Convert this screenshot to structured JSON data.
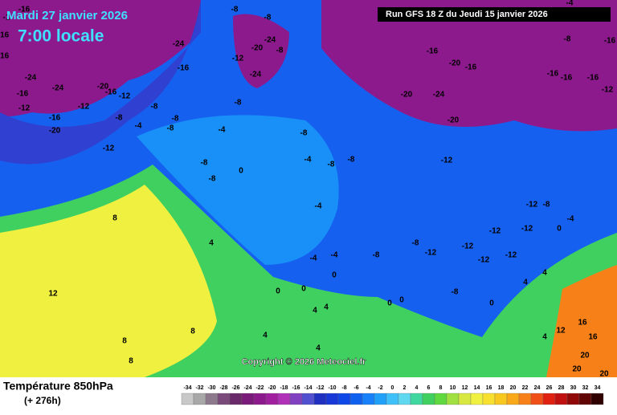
{
  "header": {
    "date": "Mardi 27 janvier 2026",
    "time": "7:00 locale",
    "run": "Run GFS 18 Z du Jeudi 15 janvier 2026",
    "copyright": "Copyright © 2026 Meteociel.fr"
  },
  "legend": {
    "title": "Température 850hPa",
    "lead": "(+ 276h)",
    "ticks": [
      -34,
      -32,
      -30,
      -28,
      -26,
      -24,
      -22,
      -20,
      -18,
      -16,
      -14,
      -12,
      -10,
      -8,
      -6,
      -4,
      -2,
      0,
      2,
      4,
      6,
      8,
      10,
      12,
      14,
      16,
      18,
      20,
      22,
      24,
      26,
      28,
      30,
      32,
      34
    ],
    "colors": [
      "#c8c8c8",
      "#a8a8a8",
      "#8c7a8c",
      "#7a4a7a",
      "#6a2a6a",
      "#7a1a7a",
      "#8c1a8c",
      "#a020a0",
      "#b030b8",
      "#8040c0",
      "#5050d0",
      "#2030c0",
      "#1838d8",
      "#1048e8",
      "#1060f0",
      "#1880f8",
      "#20a0f8",
      "#40c0f8",
      "#60d8f0",
      "#40d8a0",
      "#40d060",
      "#60d840",
      "#a0e040",
      "#d8e840",
      "#f0f040",
      "#f8e030",
      "#f8c820",
      "#f8a818",
      "#f88018",
      "#f05018",
      "#e02010",
      "#c01010",
      "#900808",
      "#600404",
      "#300000"
    ]
  },
  "map": {
    "labels": [
      -16,
      -24,
      -16,
      -24,
      -16,
      -24,
      -20,
      -16,
      -12,
      -12,
      -16,
      -12,
      -16,
      -20,
      -8,
      -4,
      -12,
      -8,
      -8,
      -8,
      -8,
      -12,
      -20,
      -24,
      -8,
      -24,
      -8,
      -8,
      -4,
      -8,
      -8,
      -8,
      0,
      -4,
      -8,
      -8,
      -4,
      -4,
      -4,
      -8,
      -8,
      -12,
      -12,
      -16,
      -20,
      -16,
      -20,
      -24,
      -20,
      -16,
      -16,
      -12,
      -12,
      -12,
      -12,
      -12,
      -8,
      -12,
      0,
      -4,
      -8,
      0,
      0,
      0,
      0,
      4,
      4,
      0,
      0,
      4,
      4,
      8,
      4,
      8,
      8,
      12,
      4,
      4,
      12,
      16,
      16,
      20,
      20,
      20,
      8,
      4,
      -1,
      -16,
      -4,
      -8,
      -16,
      -16,
      -12
    ]
  }
}
